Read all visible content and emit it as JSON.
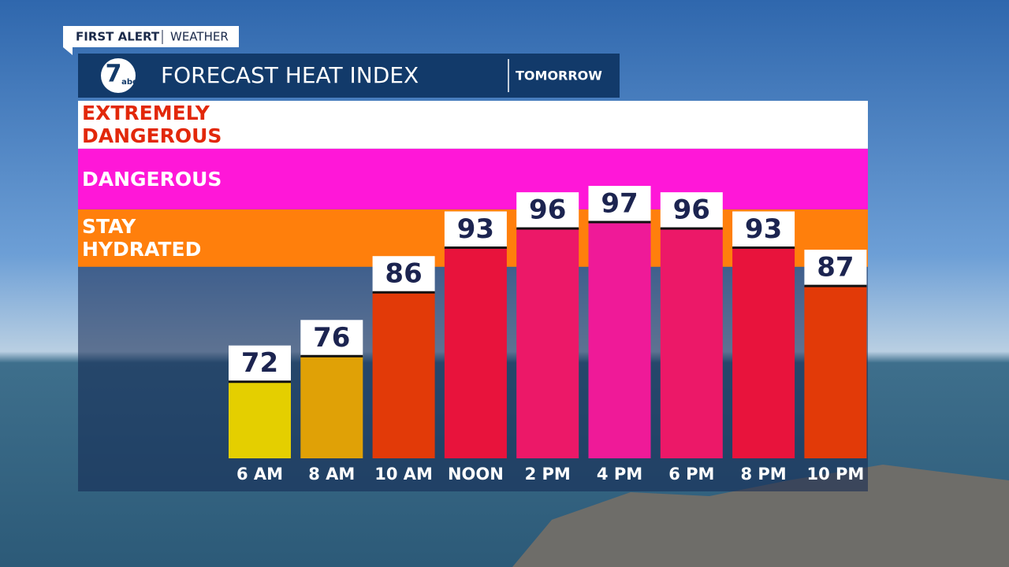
{
  "header": {
    "brand": "FIRST ALERT",
    "section": "WEATHER",
    "logo_number": "7",
    "logo_network": "abc",
    "title": "FORECAST HEAT INDEX",
    "period": "TOMORROW"
  },
  "chart_data": {
    "type": "bar",
    "categories": [
      "6 AM",
      "8 AM",
      "10 AM",
      "NOON",
      "2 PM",
      "4 PM",
      "6 PM",
      "8 PM",
      "10 PM"
    ],
    "values": [
      72,
      76,
      86,
      93,
      96,
      97,
      96,
      93,
      87
    ],
    "colors": [
      "#e4cf00",
      "#e0a106",
      "#e23a08",
      "#e8133c",
      "#ec1868",
      "#ef1a98",
      "#ec1868",
      "#e8133c",
      "#e23a08"
    ],
    "ylim": [
      60,
      116
    ],
    "zones": [
      {
        "label": "STAY HYDRATED",
        "from": 90,
        "to": 99,
        "color": "#ff7f0c",
        "text_color": "#ffffff"
      },
      {
        "label": "DANGEROUS",
        "from": 99,
        "to": 108.5,
        "color": "#ff17d8",
        "text_color": "#ffffff"
      },
      {
        "label": "EXTREMELY DANGEROUS",
        "from": 108.5,
        "to": 116,
        "color": "#ffffff",
        "text_color": "#e2280a"
      }
    ]
  }
}
